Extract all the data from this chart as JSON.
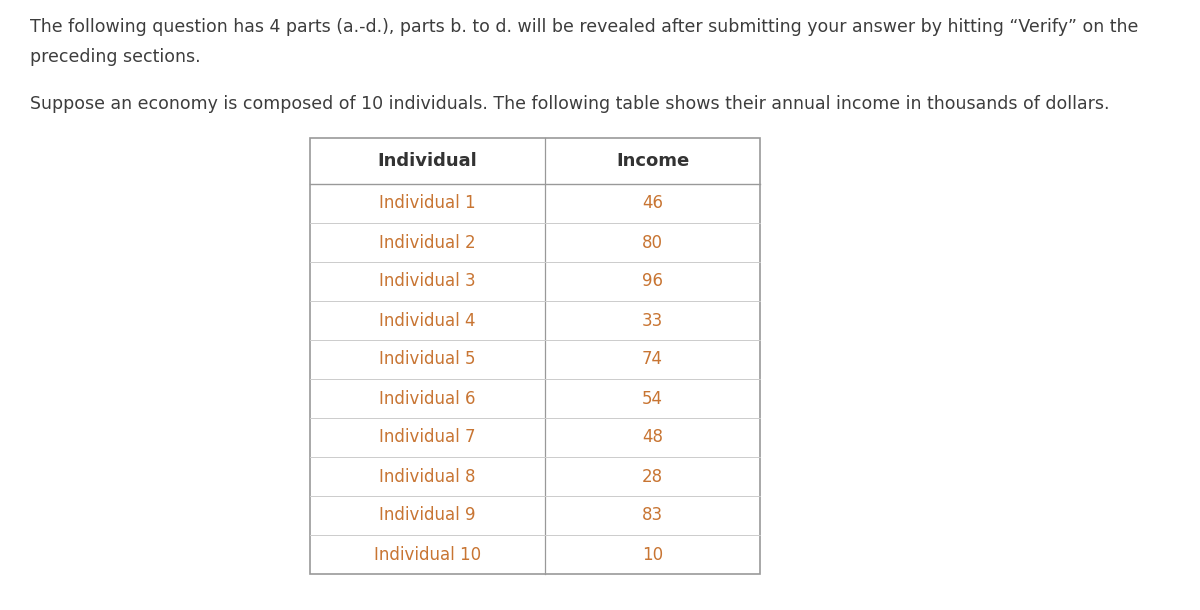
{
  "header_text_1": "The following question has 4 parts (a.-d.), parts b. to d. will be revealed after submitting your answer by hitting “Verify” on the",
  "header_text_2": "preceding sections.",
  "description": "Suppose an economy is composed of 10 individuals. The following table shows their annual income in thousands of dollars.",
  "col_headers": [
    "Individual",
    "Income"
  ],
  "individuals": [
    "Individual 1",
    "Individual 2",
    "Individual 3",
    "Individual 4",
    "Individual 5",
    "Individual 6",
    "Individual 7",
    "Individual 8",
    "Individual 9",
    "Individual 10"
  ],
  "incomes": [
    46,
    80,
    96,
    33,
    74,
    54,
    48,
    28,
    83,
    10
  ],
  "bg_color": "#ffffff",
  "header_text_color": "#3d3d3d",
  "table_header_color": "#333333",
  "table_body_text_color": "#c87533",
  "table_border_color": "#cccccc",
  "table_outer_border_color": "#999999",
  "header_font_size": 12.5,
  "body_font_size": 12,
  "table_header_font_size": 13,
  "table_body_font_size": 12
}
